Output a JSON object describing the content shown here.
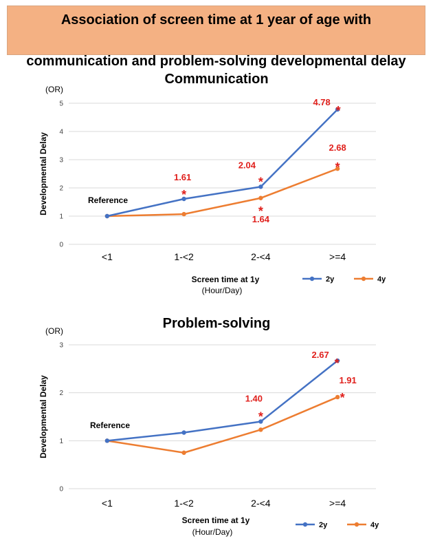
{
  "banner": {
    "line1": "Association of screen time at 1 year of age with",
    "line2": "communication and problem-solving developmental delay"
  },
  "colors": {
    "series_2y": "#4472c4",
    "series_4y": "#ed7d31",
    "annotation": "#e0201c",
    "banner_bg": "#f4b183",
    "grid": "#d9d9d9"
  },
  "chart_data": [
    {
      "type": "line",
      "title": "Communication",
      "unit_label": "(OR)",
      "ylabel": "Developmental Delay",
      "xlabel_line1": "Screen time at 1y",
      "xlabel_line2": "(Hour/Day)",
      "categories": [
        "<1",
        "1-<2",
        "2-<4",
        ">=4"
      ],
      "ylim": [
        0,
        5
      ],
      "yticks": [
        0,
        1,
        2,
        3,
        4,
        5
      ],
      "grid": true,
      "legend_position": "bottom-right",
      "reference_label": "Reference",
      "series": [
        {
          "name": "2y",
          "values": [
            1.0,
            1.61,
            2.04,
            4.78
          ]
        },
        {
          "name": "4y",
          "values": [
            1.0,
            1.07,
            1.64,
            2.68
          ]
        }
      ],
      "annotations": [
        {
          "series": "2y",
          "category": "1-<2",
          "text": "1.61",
          "star": "*"
        },
        {
          "series": "2y",
          "category": "2-<4",
          "text": "2.04",
          "star": "*"
        },
        {
          "series": "2y",
          "category": ">=4",
          "text": "4.78",
          "star": "*"
        },
        {
          "series": "4y",
          "category": "2-<4",
          "text": "1.64",
          "star": "*"
        },
        {
          "series": "4y",
          "category": ">=4",
          "text": "2.68",
          "star": "*"
        }
      ]
    },
    {
      "type": "line",
      "title": "Problem-solving",
      "unit_label": "(OR)",
      "ylabel": "Developmental Delay",
      "xlabel_line1": "Screen time at 1y",
      "xlabel_line2": "(Hour/Day)",
      "categories": [
        "<1",
        "1-<2",
        "2-<4",
        ">=4"
      ],
      "ylim": [
        0,
        3
      ],
      "yticks": [
        0,
        1,
        2,
        3
      ],
      "grid": true,
      "legend_position": "bottom-right",
      "reference_label": "Reference",
      "series": [
        {
          "name": "2y",
          "values": [
            1.0,
            1.17,
            1.4,
            2.67
          ]
        },
        {
          "name": "4y",
          "values": [
            1.0,
            0.75,
            1.23,
            1.91
          ]
        }
      ],
      "annotations": [
        {
          "series": "2y",
          "category": "2-<4",
          "text": "1.40",
          "star": "*"
        },
        {
          "series": "2y",
          "category": ">=4",
          "text": "2.67",
          "star": "*"
        },
        {
          "series": "4y",
          "category": ">=4",
          "text": "1.91",
          "star": "*"
        }
      ]
    }
  ]
}
